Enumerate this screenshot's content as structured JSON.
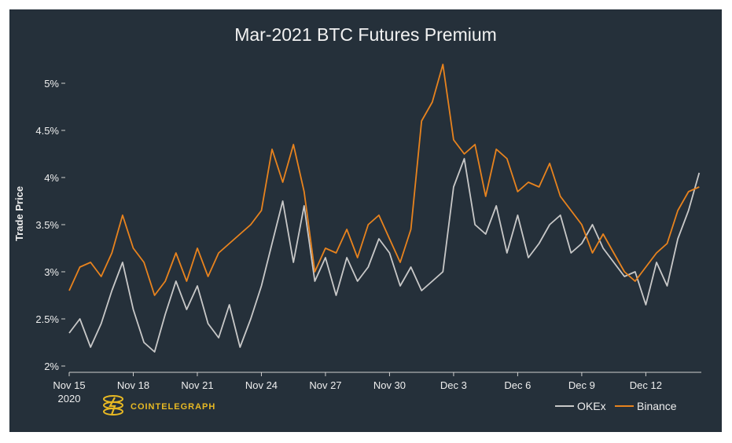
{
  "brand": {
    "name": "COINTELEGRAPH",
    "color": "#e8b923"
  },
  "chart_data": {
    "type": "line",
    "title": "Mar-2021 BTC Futures Premium",
    "xlabel": "",
    "ylabel": "Trade Price",
    "ylim": [
      1.95,
      5.3
    ],
    "y_ticks": [
      2,
      2.5,
      3,
      3.5,
      4,
      4.5,
      5
    ],
    "y_tick_labels": [
      "2%",
      "2.5%",
      "3%",
      "3.5%",
      "4%",
      "4.5%",
      "5%"
    ],
    "xlim": [
      0,
      29.6
    ],
    "x_ticks": [
      0,
      3,
      6,
      9,
      12,
      15,
      18,
      21,
      24,
      27
    ],
    "x_tick_labels": [
      "Nov 15",
      "Nov 18",
      "Nov 21",
      "Nov 24",
      "Nov 27",
      "Nov 30",
      "Dec 3",
      "Dec 6",
      "Dec 9",
      "Dec 12"
    ],
    "x_sublabel": "2020",
    "grid": false,
    "legend": "bottom-right",
    "x": [
      0,
      0.5,
      1,
      1.5,
      2,
      2.5,
      3,
      3.5,
      4,
      4.5,
      5,
      5.5,
      6,
      6.5,
      7,
      7.5,
      8,
      8.5,
      9,
      9.5,
      10,
      10.5,
      11,
      11.5,
      12,
      12.5,
      13,
      13.5,
      14,
      14.5,
      15,
      15.5,
      16,
      16.5,
      17,
      17.5,
      18,
      18.5,
      19,
      19.5,
      20,
      20.5,
      21,
      21.5,
      22,
      22.5,
      23,
      23.5,
      24,
      24.5,
      25,
      25.5,
      26,
      26.5,
      27,
      27.5,
      28,
      28.5,
      29,
      29.5
    ],
    "series": [
      {
        "name": "OKEx",
        "color": "#c8c8c8",
        "values": [
          2.35,
          2.5,
          2.2,
          2.45,
          2.8,
          3.1,
          2.6,
          2.25,
          2.15,
          2.55,
          2.9,
          2.6,
          2.85,
          2.45,
          2.3,
          2.65,
          2.2,
          2.5,
          2.85,
          3.3,
          3.75,
          3.1,
          3.7,
          2.9,
          3.15,
          2.75,
          3.15,
          2.9,
          3.05,
          3.35,
          3.2,
          2.85,
          3.05,
          2.8,
          2.9,
          3.0,
          3.9,
          4.2,
          3.5,
          3.4,
          3.7,
          3.2,
          3.6,
          3.15,
          3.3,
          3.5,
          3.6,
          3.2,
          3.3,
          3.5,
          3.25,
          3.1,
          2.95,
          3.0,
          2.65,
          3.1,
          2.85,
          3.35,
          3.65,
          4.05
        ]
      },
      {
        "name": "Binance",
        "color": "#e8831e",
        "values": [
          2.8,
          3.05,
          3.1,
          2.95,
          3.2,
          3.6,
          3.25,
          3.1,
          2.75,
          2.9,
          3.2,
          2.9,
          3.25,
          2.95,
          3.2,
          3.3,
          3.4,
          3.5,
          3.65,
          4.3,
          3.95,
          4.35,
          3.85,
          3.0,
          3.25,
          3.2,
          3.45,
          3.15,
          3.5,
          3.6,
          3.35,
          3.1,
          3.45,
          4.6,
          4.8,
          5.2,
          4.4,
          4.25,
          4.35,
          3.8,
          4.3,
          4.2,
          3.85,
          3.95,
          3.9,
          4.15,
          3.8,
          3.65,
          3.5,
          3.2,
          3.4,
          3.2,
          3.0,
          2.9,
          3.05,
          3.2,
          3.3,
          3.65,
          3.85,
          3.9
        ]
      }
    ]
  }
}
